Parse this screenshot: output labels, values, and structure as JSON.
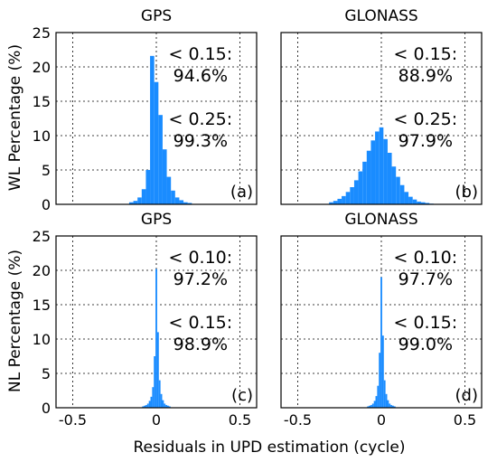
{
  "figure": {
    "xlabel": "Residuals in UPD estimation (cycle)",
    "row_ylabels": [
      "WL Percentage (%)",
      "NL Percentage (%)"
    ]
  },
  "chart_data": [
    {
      "type": "bar",
      "panel": "a",
      "title": "GPS",
      "tag": "(a)",
      "xlim": [
        -0.6,
        0.6
      ],
      "ylim": [
        0,
        25
      ],
      "xticks": [
        "-0.5",
        "0",
        "0.5"
      ],
      "yticks": [
        "0",
        "5",
        "10",
        "15",
        "20",
        "25"
      ],
      "bin_width": 0.025,
      "x": [
        -0.15,
        -0.125,
        -0.1,
        -0.075,
        -0.05,
        -0.025,
        0,
        0.025,
        0.05,
        0.075,
        0.1,
        0.125,
        0.15,
        0.175,
        0.2
      ],
      "values": [
        0.3,
        0.5,
        1.0,
        2.2,
        5.0,
        21.6,
        17.8,
        13.0,
        8.0,
        4.0,
        2.0,
        1.0,
        0.6,
        0.3,
        0.2
      ],
      "annotations": [
        {
          "label": "< 0.15:",
          "value": "94.6%"
        },
        {
          "label": "< 0.25:",
          "value": "99.3%"
        }
      ]
    },
    {
      "type": "bar",
      "panel": "b",
      "title": "GLONASS",
      "tag": "(b)",
      "xlim": [
        -0.6,
        0.6
      ],
      "ylim": [
        0,
        25
      ],
      "xticks": [
        "-0.5",
        "0",
        "0.5"
      ],
      "yticks": [
        "0",
        "5",
        "10",
        "15",
        "20",
        "25"
      ],
      "bin_width": 0.025,
      "x": [
        -0.3,
        -0.275,
        -0.25,
        -0.225,
        -0.2,
        -0.175,
        -0.15,
        -0.125,
        -0.1,
        -0.075,
        -0.05,
        -0.025,
        0,
        0.025,
        0.05,
        0.075,
        0.1,
        0.125,
        0.15,
        0.175,
        0.2,
        0.225,
        0.25,
        0.275,
        0.3
      ],
      "values": [
        0.3,
        0.5,
        0.8,
        1.2,
        1.8,
        2.5,
        3.5,
        4.8,
        6.2,
        7.8,
        9.3,
        10.6,
        11.2,
        9.5,
        7.5,
        5.5,
        4.0,
        2.8,
        1.8,
        1.1,
        0.7,
        0.4,
        0.3,
        0.2,
        0.1
      ],
      "annotations": [
        {
          "label": "< 0.15:",
          "value": "88.9%"
        },
        {
          "label": "< 0.25:",
          "value": "97.9%"
        }
      ]
    },
    {
      "type": "bar",
      "panel": "c",
      "title": "GPS",
      "tag": "(c)",
      "xlim": [
        -0.6,
        0.6
      ],
      "ylim": [
        0,
        25
      ],
      "xticks": [
        "-0.5",
        "0",
        "0.5"
      ],
      "yticks": [
        "0",
        "5",
        "10",
        "15",
        "20",
        "25"
      ],
      "bin_width": 0.01,
      "x": [
        -0.08,
        -0.07,
        -0.06,
        -0.05,
        -0.04,
        -0.03,
        -0.02,
        -0.01,
        0,
        0.01,
        0.02,
        0.03,
        0.04,
        0.05,
        0.06,
        0.07,
        0.08
      ],
      "values": [
        0.2,
        0.3,
        0.4,
        0.6,
        1.0,
        1.6,
        3.0,
        7.5,
        20.2,
        11.0,
        4.0,
        2.0,
        1.1,
        0.6,
        0.4,
        0.3,
        0.2
      ],
      "annotations": [
        {
          "label": "< 0.10:",
          "value": "97.2%"
        },
        {
          "label": "< 0.15:",
          "value": "98.9%"
        }
      ]
    },
    {
      "type": "bar",
      "panel": "d",
      "title": "GLONASS",
      "tag": "(d)",
      "xlim": [
        -0.6,
        0.6
      ],
      "ylim": [
        0,
        25
      ],
      "xticks": [
        "-0.5",
        "0",
        "0.5"
      ],
      "yticks": [
        "0",
        "5",
        "10",
        "15",
        "20",
        "25"
      ],
      "bin_width": 0.01,
      "x": [
        -0.08,
        -0.07,
        -0.06,
        -0.05,
        -0.04,
        -0.03,
        -0.02,
        -0.01,
        0,
        0.01,
        0.02,
        0.03,
        0.04,
        0.05,
        0.06,
        0.07,
        0.08
      ],
      "values": [
        0.2,
        0.3,
        0.4,
        0.6,
        1.0,
        1.7,
        3.2,
        8.0,
        19.0,
        10.5,
        4.0,
        2.0,
        1.1,
        0.6,
        0.4,
        0.3,
        0.2
      ],
      "annotations": [
        {
          "label": "< 0.10:",
          "value": "97.7%"
        },
        {
          "label": "< 0.15:",
          "value": "99.0%"
        }
      ]
    }
  ]
}
